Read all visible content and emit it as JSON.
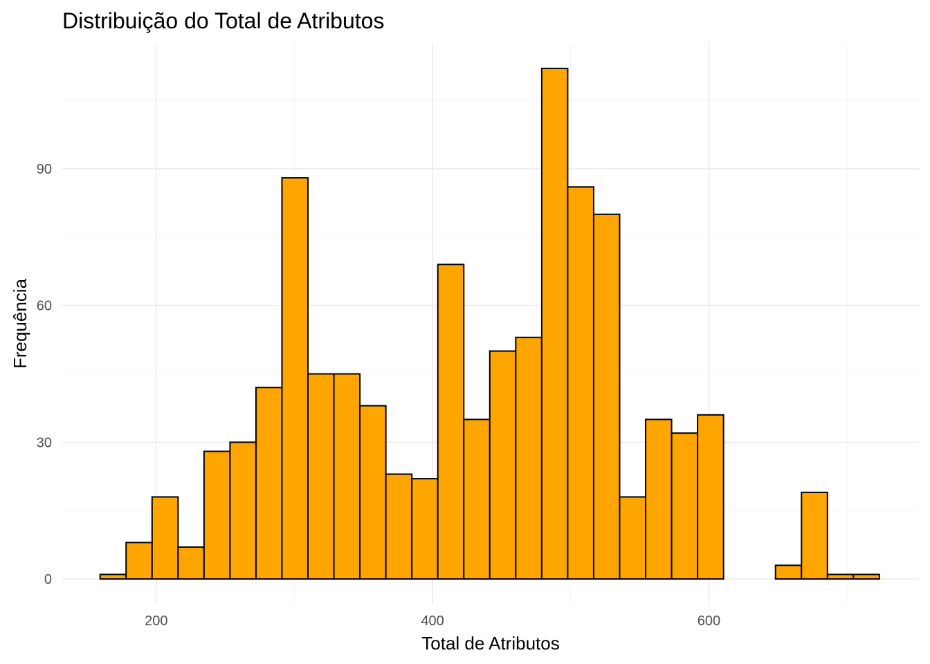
{
  "chart_data": {
    "type": "bar",
    "title": "Distribuição do Total de Atributos",
    "xlabel": "Total de Atributos",
    "ylabel": "Frequência",
    "bin_width": 18.8,
    "bin_starts": [
      159.4,
      178.2,
      197.0,
      215.8,
      234.6,
      253.4,
      272.2,
      291.0,
      309.8,
      328.6,
      347.4,
      366.2,
      385.0,
      403.8,
      422.6,
      441.4,
      460.2,
      479.0,
      497.8,
      516.6,
      535.4,
      554.2,
      573.0,
      591.8,
      610.6,
      629.4,
      648.2,
      667.0,
      685.8,
      704.6
    ],
    "values": [
      1,
      8,
      18,
      7,
      28,
      30,
      42,
      88,
      45,
      45,
      38,
      23,
      22,
      69,
      35,
      50,
      53,
      112,
      86,
      80,
      18,
      35,
      32,
      36,
      0,
      0,
      3,
      19,
      1,
      1
    ],
    "xlim": [
      132,
      752
    ],
    "ylim": [
      -5.6,
      117.6
    ],
    "x_ticks": [
      "200",
      "400",
      "600"
    ],
    "y_ticks": [
      "0",
      "30",
      "60",
      "90"
    ],
    "grid": true,
    "fill_color": "#FFA500",
    "edge_color": "#000000",
    "grid_color": "#EBEBEB"
  }
}
